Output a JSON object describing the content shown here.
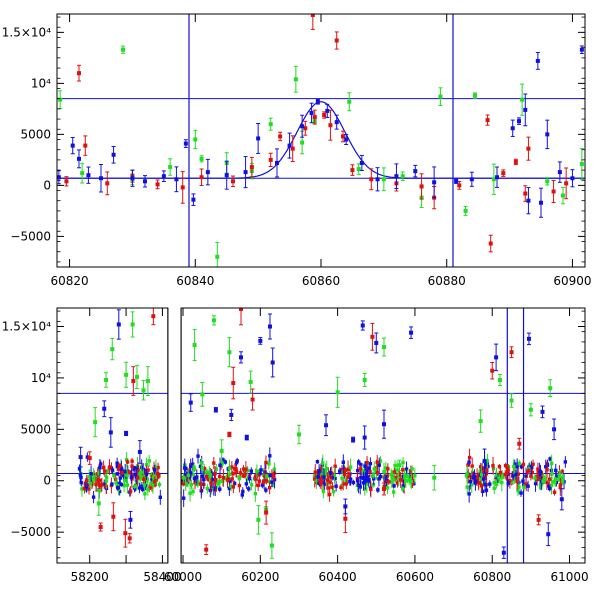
{
  "chart_data": [
    {
      "type": "scatter",
      "panel": "top",
      "title": "",
      "xlabel": "",
      "ylabel": "",
      "xlim": [
        60818,
        60902
      ],
      "ylim": [
        -8000,
        16800
      ],
      "xticks": [
        60820,
        60840,
        60860,
        60880,
        60900
      ],
      "yticks": [
        -5000,
        0,
        5000,
        10000,
        15000
      ],
      "ytick_labels": [
        "−5000",
        "0",
        "5000",
        "10⁴",
        "1.5×10⁴"
      ],
      "hlines": [
        8500,
        700
      ],
      "vlines": [
        60839,
        60881
      ],
      "model_curve": {
        "color": "#1010d0",
        "baseline": 700,
        "peak": 8200,
        "t0": 60860,
        "width": 3.8
      },
      "colors": {
        "green": "#22dd22",
        "red": "#dd1111",
        "blue": "#1111dd",
        "lines": "#1010d0"
      },
      "series": [
        {
          "color": "green",
          "points": [
            [
              60818.5,
              8400
            ],
            [
              60822,
              1200
            ],
            [
              60828.5,
              13300
            ],
            [
              60830,
              600
            ],
            [
              60836,
              1800
            ],
            [
              60840,
              4500
            ],
            [
              60841,
              2600
            ],
            [
              60843.5,
              -7000
            ],
            [
              60845,
              2200
            ],
            [
              60849,
              1400
            ],
            [
              60852,
              6000
            ],
            [
              60856,
              10400
            ],
            [
              60857,
              4200
            ],
            [
              60859,
              6300
            ],
            [
              60864.5,
              8200
            ],
            [
              60866,
              1600
            ],
            [
              60870,
              600
            ],
            [
              60873,
              900
            ],
            [
              60876,
              -1200
            ],
            [
              60879,
              8700
            ],
            [
              60883,
              -2500
            ],
            [
              60884.5,
              8800
            ],
            [
              60887.5,
              600
            ],
            [
              60892,
              8400
            ],
            [
              60896,
              400
            ],
            [
              60898.5,
              -1000
            ],
            [
              60901.5,
              2100
            ]
          ]
        },
        {
          "color": "red",
          "points": [
            [
              60819.5,
              400
            ],
            [
              60821.5,
              11000
            ],
            [
              60822.5,
              3900
            ],
            [
              60826,
              200
            ],
            [
              60830,
              900
            ],
            [
              60834,
              100
            ],
            [
              60838,
              -200
            ],
            [
              60841,
              800
            ],
            [
              60846,
              400
            ],
            [
              60849,
              1800
            ],
            [
              60852,
              2500
            ],
            [
              60853.5,
              4800
            ],
            [
              60855.5,
              3600
            ],
            [
              60857.5,
              5600
            ],
            [
              60859,
              6700
            ],
            [
              60860.5,
              6900
            ],
            [
              60861.5,
              5900
            ],
            [
              60863.5,
              4800
            ],
            [
              60858.7,
              16700
            ],
            [
              60862.5,
              14200
            ],
            [
              60865,
              1500
            ],
            [
              60868,
              600
            ],
            [
              60872,
              200
            ],
            [
              60876,
              -100
            ],
            [
              60878,
              -1200
            ],
            [
              60882,
              0
            ],
            [
              60886.5,
              6400
            ],
            [
              60887,
              -5700
            ],
            [
              60889,
              1200
            ],
            [
              60891,
              2300
            ],
            [
              60892.5,
              -800
            ],
            [
              60893,
              3600
            ],
            [
              60897,
              -600
            ],
            [
              60899,
              200
            ]
          ]
        },
        {
          "color": "blue",
          "points": [
            [
              60818.3,
              800
            ],
            [
              60820.5,
              3900
            ],
            [
              60821.5,
              2600
            ],
            [
              60823,
              1000
            ],
            [
              60825,
              700
            ],
            [
              60827,
              3000
            ],
            [
              60830,
              700
            ],
            [
              60832,
              400
            ],
            [
              60835,
              900
            ],
            [
              60837,
              600
            ],
            [
              60838.5,
              4100
            ],
            [
              60839.7,
              -1400
            ],
            [
              60842,
              1300
            ],
            [
              60845,
              1000
            ],
            [
              60848,
              1300
            ],
            [
              60850,
              4600
            ],
            [
              60853,
              2200
            ],
            [
              60855,
              3900
            ],
            [
              60857,
              5800
            ],
            [
              60858.5,
              7100
            ],
            [
              60859.5,
              8200
            ],
            [
              60861,
              7300
            ],
            [
              60862.5,
              6200
            ],
            [
              60864,
              4500
            ],
            [
              60866.5,
              2200
            ],
            [
              60869,
              600
            ],
            [
              60872,
              900
            ],
            [
              60875,
              1400
            ],
            [
              60878,
              300
            ],
            [
              60881.5,
              400
            ],
            [
              60884,
              600
            ],
            [
              60888,
              800
            ],
            [
              60890.5,
              5600
            ],
            [
              60891.5,
              6300
            ],
            [
              60892.5,
              7400
            ],
            [
              60894.5,
              12200
            ],
            [
              60896,
              5000
            ],
            [
              60898,
              1300
            ],
            [
              60900,
              700
            ],
            [
              60901.5,
              13300
            ],
            [
              60893,
              -1500
            ],
            [
              60895,
              -1700
            ]
          ]
        }
      ]
    },
    {
      "type": "scatter",
      "panel": "bottom",
      "title": "",
      "xlabel": "",
      "ylabel": "",
      "xlim": [
        58110,
        61040
      ],
      "x_break": [
        58415,
        59995
      ],
      "ylim": [
        -8000,
        16800
      ],
      "xticks": [
        58200,
        58300,
        58400,
        60000,
        60200,
        60400,
        60600,
        60800,
        61000
      ],
      "xtick_labels": [
        "58200",
        "",
        "58400",
        "60000",
        "60200",
        "60400",
        "60600",
        "60800",
        "61000"
      ],
      "yticks": [
        -5000,
        0,
        5000,
        10000,
        15000
      ],
      "ytick_labels": [
        "−5000",
        "0",
        "5000",
        "10⁴",
        "1.5×10⁴"
      ],
      "hlines": [
        8500,
        700
      ],
      "vlines": [
        60839,
        60881
      ],
      "segments": [
        [
          58170,
          58400
        ],
        [
          60000,
          60240
        ],
        [
          60340,
          60600
        ],
        [
          60730,
          60990
        ]
      ],
      "colors": {
        "green": "#22dd22",
        "red": "#dd1111",
        "blue": "#1111dd",
        "lines": "#1010d0"
      },
      "series": [
        {
          "color": "green",
          "points": [
            [
              58215,
              5700
            ],
            [
              58245,
              9800
            ],
            [
              58262,
              12800
            ],
            [
              58300,
              10300
            ],
            [
              58318,
              15200
            ],
            [
              58330,
              10100
            ],
            [
              58348,
              8800
            ],
            [
              58360,
              9700
            ],
            [
              60030,
              13200
            ],
            [
              60050,
              8400
            ],
            [
              60080,
              15600
            ],
            [
              60120,
              12500
            ],
            [
              60175,
              9600
            ],
            [
              60215,
              -2800
            ],
            [
              60195,
              -3800
            ],
            [
              60230,
              -6300
            ],
            [
              60400,
              8600
            ],
            [
              60470,
              9800
            ],
            [
              60520,
              13000
            ],
            [
              60560,
              1500
            ],
            [
              60770,
              5800
            ],
            [
              60820,
              9800
            ],
            [
              60850,
              7800
            ],
            [
              60900,
              6900
            ],
            [
              60950,
              9000
            ],
            [
              58225,
              -2200
            ],
            [
              60100,
              2900
            ],
            [
              60300,
              4500
            ],
            [
              60650,
              300
            ]
          ]
        },
        {
          "color": "red",
          "points": [
            [
              58230,
              -4500
            ],
            [
              58265,
              -3500
            ],
            [
              58298,
              -5100
            ],
            [
              58310,
              -5600
            ],
            [
              58320,
              9700
            ],
            [
              58375,
              16000
            ],
            [
              60060,
              -6700
            ],
            [
              60120,
              4500
            ],
            [
              60150,
              16700
            ],
            [
              60180,
              7900
            ],
            [
              60215,
              -3100
            ],
            [
              60420,
              -3700
            ],
            [
              60490,
              14000
            ],
            [
              60520,
              -800
            ],
            [
              60800,
              10700
            ],
            [
              60850,
              12500
            ],
            [
              60870,
              3600
            ],
            [
              60920,
              -3800
            ],
            [
              58200,
              2200
            ],
            [
              60130,
              9500
            ]
          ]
        },
        {
          "color": "blue",
          "points": [
            [
              58175,
              2300
            ],
            [
              58240,
              7000
            ],
            [
              58258,
              4700
            ],
            [
              58280,
              15200
            ],
            [
              58300,
              4600
            ],
            [
              58312,
              -3800
            ],
            [
              58338,
              2800
            ],
            [
              60020,
              7600
            ],
            [
              60085,
              6900
            ],
            [
              60125,
              6400
            ],
            [
              60150,
              12000
            ],
            [
              60165,
              4200
            ],
            [
              60200,
              13600
            ],
            [
              60225,
              15000
            ],
            [
              60232,
              11500
            ],
            [
              60370,
              5400
            ],
            [
              60420,
              -2500
            ],
            [
              60440,
              4000
            ],
            [
              60465,
              15100
            ],
            [
              60500,
              13400
            ],
            [
              60520,
              5500
            ],
            [
              60590,
              14400
            ],
            [
              60780,
              1900
            ],
            [
              60810,
              12000
            ],
            [
              60830,
              -7000
            ],
            [
              60895,
              13800
            ],
            [
              60930,
              6700
            ],
            [
              60960,
              5000
            ],
            [
              60980,
              -1800
            ],
            [
              60470,
              4200
            ],
            [
              60945,
              -5200
            ]
          ]
        }
      ]
    }
  ]
}
